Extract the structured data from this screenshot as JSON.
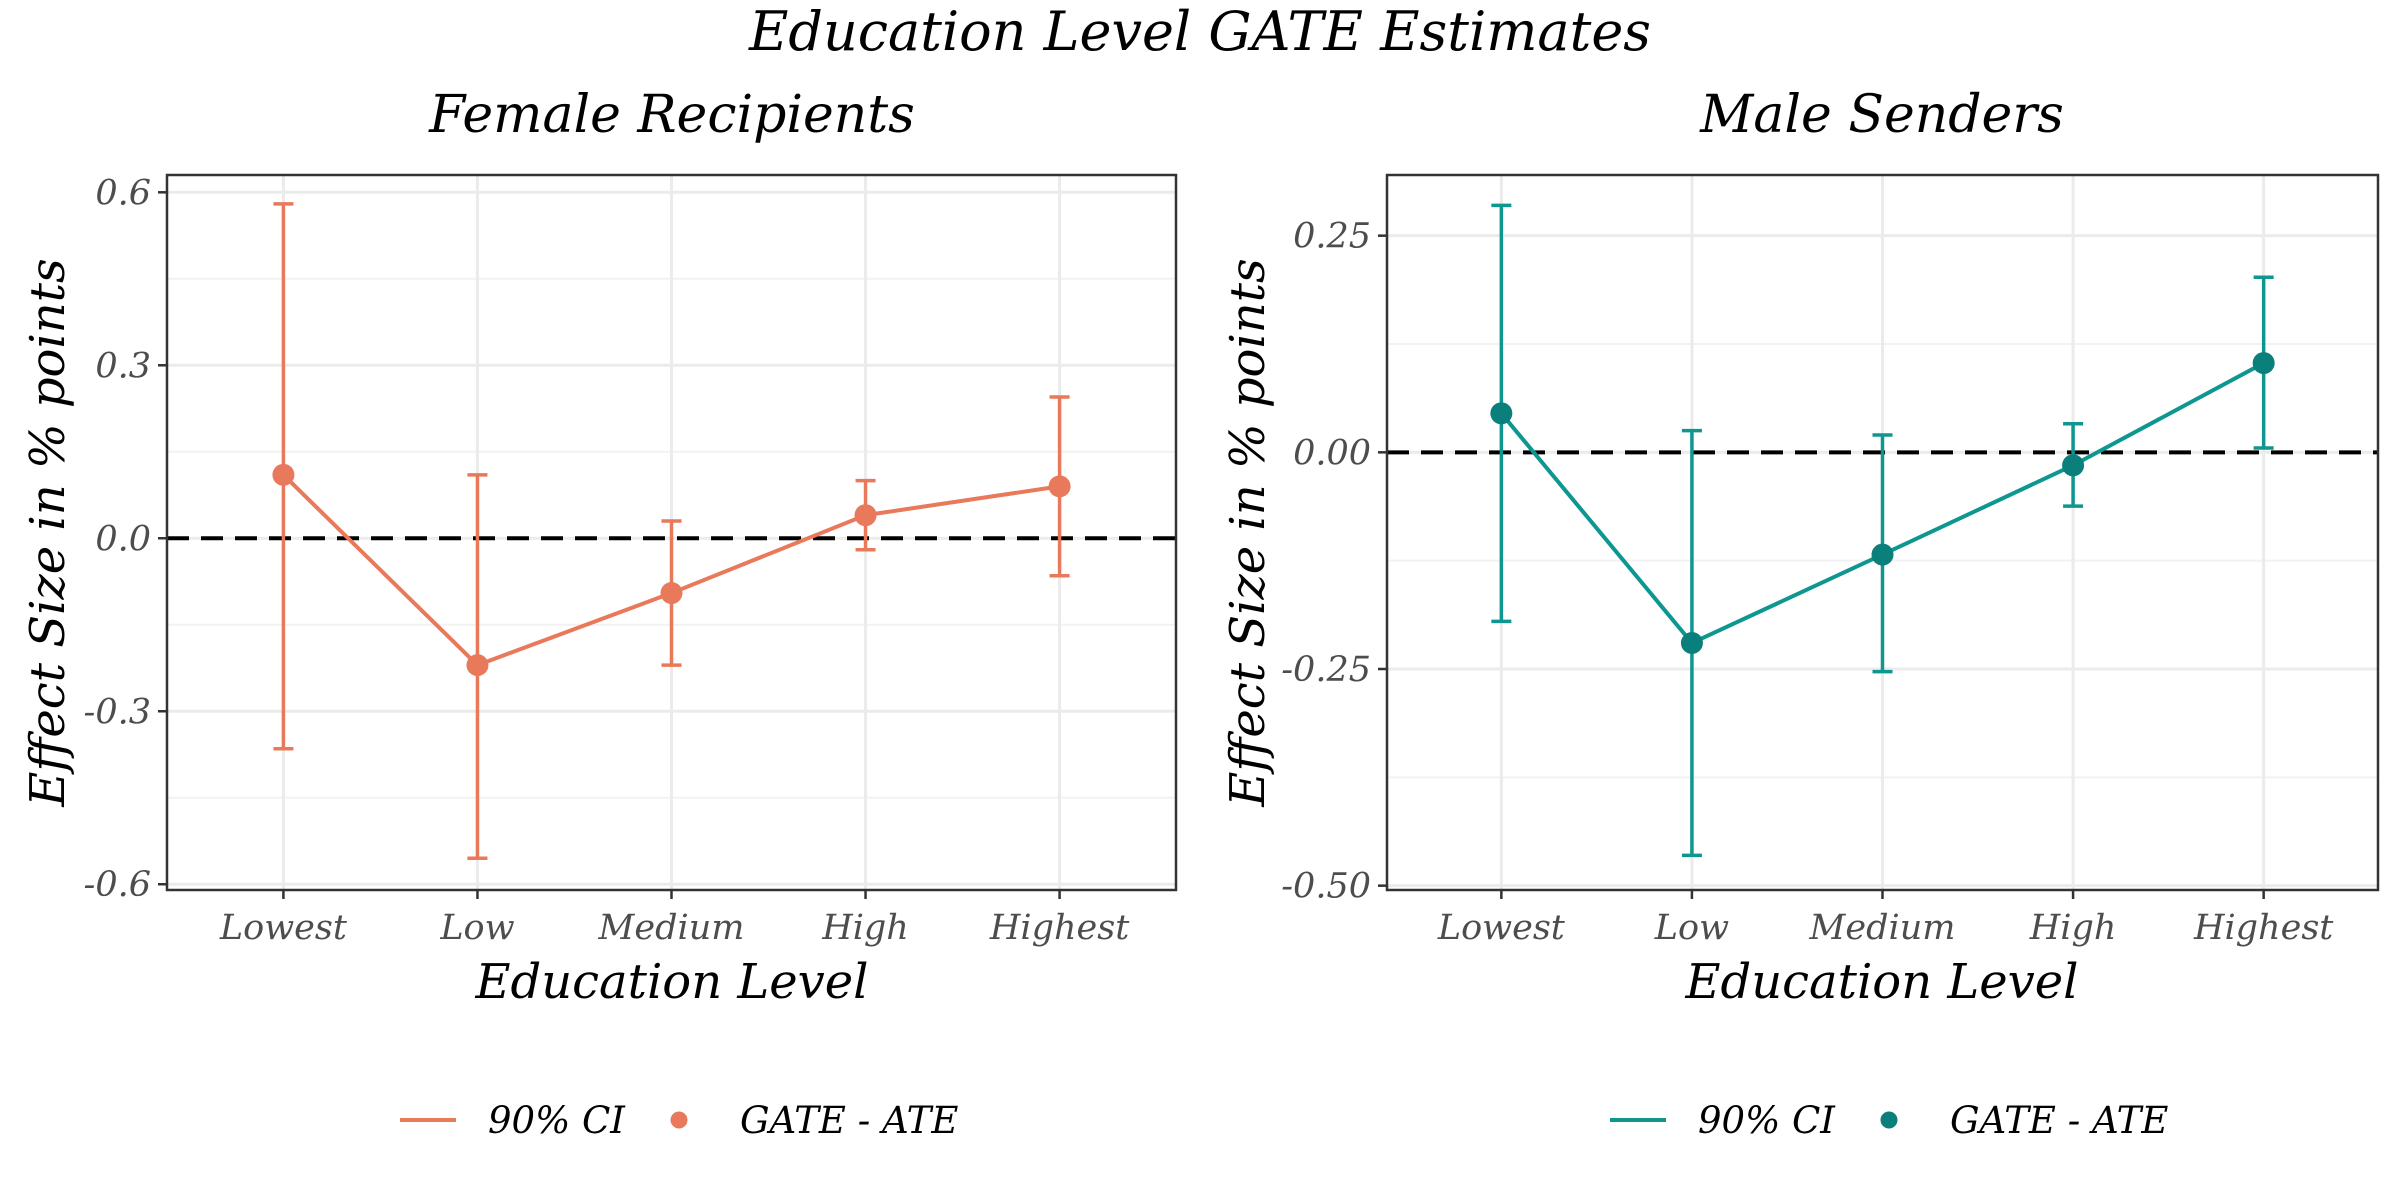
{
  "figure": {
    "title": "Education Level GATE Estimates"
  },
  "chart_data": [
    {
      "type": "line",
      "title": "Female Recipients",
      "xlabel": "Education Level",
      "ylabel": "Effect Size in % points",
      "categories": [
        "Lowest",
        "Low",
        "Medium",
        "High",
        "Highest"
      ],
      "ylim": [
        -0.61,
        0.63
      ],
      "yticks": [
        -0.6,
        -0.3,
        0.0,
        0.3,
        0.6
      ],
      "ytick_labels": [
        "-0.6",
        "-0.3",
        "0.0",
        "0.3",
        "0.6"
      ],
      "reference_line": 0,
      "color": "#E8795A",
      "series": [
        {
          "name": "GATE - ATE",
          "values": [
            0.11,
            -0.22,
            -0.095,
            0.04,
            0.09
          ]
        },
        {
          "name": "90% CI",
          "lower": [
            -0.365,
            -0.555,
            -0.22,
            -0.02,
            -0.065
          ],
          "upper": [
            0.58,
            0.11,
            0.03,
            0.1,
            0.245
          ]
        }
      ],
      "legend": {
        "position": "bottom",
        "entries": [
          "90% CI",
          "GATE - ATE"
        ]
      },
      "grid": true
    },
    {
      "type": "line",
      "title": "Male Senders",
      "xlabel": "Education Level",
      "ylabel": "Effect Size in % points",
      "categories": [
        "Lowest",
        "Low",
        "Medium",
        "High",
        "Highest"
      ],
      "ylim": [
        -0.505,
        0.32
      ],
      "yticks": [
        -0.5,
        -0.25,
        0.0,
        0.25
      ],
      "ytick_labels": [
        "-0.50",
        "-0.25",
        "0.00",
        "0.25"
      ],
      "reference_line": 0,
      "color": "#0E9690",
      "point_color": "#0A7F7B",
      "series": [
        {
          "name": "GATE - ATE",
          "values": [
            0.045,
            -0.22,
            -0.118,
            -0.015,
            0.103
          ]
        },
        {
          "name": "90% CI",
          "lower": [
            -0.195,
            -0.465,
            -0.253,
            -0.062,
            0.005
          ],
          "upper": [
            0.285,
            0.025,
            0.02,
            0.033,
            0.202
          ]
        }
      ],
      "legend": {
        "position": "bottom",
        "entries": [
          "90% CI",
          "GATE - ATE"
        ]
      },
      "grid": true
    }
  ]
}
